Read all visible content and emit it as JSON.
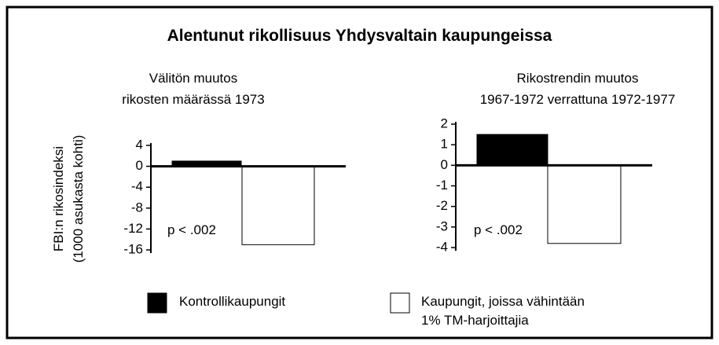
{
  "title": "Alentunut rikollisuus Yhdysvaltain kaupungeissa",
  "ylabel": "FBI:n rikosindeksi\n(1000 asukasta kohti)",
  "chart_data": [
    {
      "type": "bar",
      "subtitle": "Välitön muutos\nrikosten määrässä 1973",
      "annotation": "p < .002",
      "ylim": [
        -16,
        4
      ],
      "yticks": [
        4,
        0,
        -4,
        -8,
        -12,
        -16
      ],
      "series": [
        {
          "name": "Kontrollikaupungit",
          "color": "#000000",
          "values": [
            1
          ]
        },
        {
          "name": "Kaupungit, joissa vähintään\n1% TM-harjoittajia",
          "color": "#ffffff",
          "values": [
            -15
          ]
        }
      ]
    },
    {
      "type": "bar",
      "subtitle": "Rikostrendin muutos\n1967-1972 verrattuna 1972-1977",
      "annotation": "p < .002",
      "ylim": [
        -4,
        2
      ],
      "yticks": [
        2,
        1,
        0,
        -1,
        -2,
        -3,
        -4
      ],
      "series": [
        {
          "color": "#000000",
          "values": [
            1.5
          ]
        },
        {
          "color": "#ffffff",
          "values": [
            -3.8
          ]
        }
      ]
    }
  ]
}
